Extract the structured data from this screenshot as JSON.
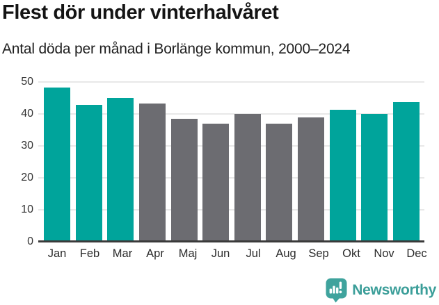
{
  "header": {
    "title": "Flest dör under vinterhalvåret",
    "subtitle": "Antal döda per månad i Borlänge kommun, 2000–2024"
  },
  "chart_data": {
    "type": "bar",
    "title": "Flest dör under vinterhalvåret",
    "subtitle": "Antal döda per månad i Borlänge kommun, 2000–2024",
    "categories": [
      "Jan",
      "Feb",
      "Mar",
      "Apr",
      "Maj",
      "Jun",
      "Jul",
      "Aug",
      "Sep",
      "Okt",
      "Nov",
      "Dec"
    ],
    "values": [
      48.3,
      42.8,
      45.1,
      43.3,
      38.4,
      36.9,
      40.0,
      36.9,
      38.9,
      41.2,
      40.0,
      43.7
    ],
    "highlighted": [
      true,
      true,
      true,
      false,
      false,
      false,
      false,
      false,
      false,
      true,
      true,
      true
    ],
    "yticks": [
      0,
      10,
      20,
      30,
      40,
      50
    ],
    "ylim": [
      0,
      50
    ],
    "xlabel": "",
    "ylabel": "",
    "grid": "horizontal",
    "legend": "none",
    "colors": {
      "highlight": "#00a49b",
      "base": "#6c6c71",
      "gridline": "#e8e8e8",
      "axis_line": "#3a3a3a",
      "tick_text": "#333333"
    }
  },
  "footer": {
    "brand": "Newsworthy",
    "brand_color": "#3b9e99"
  }
}
